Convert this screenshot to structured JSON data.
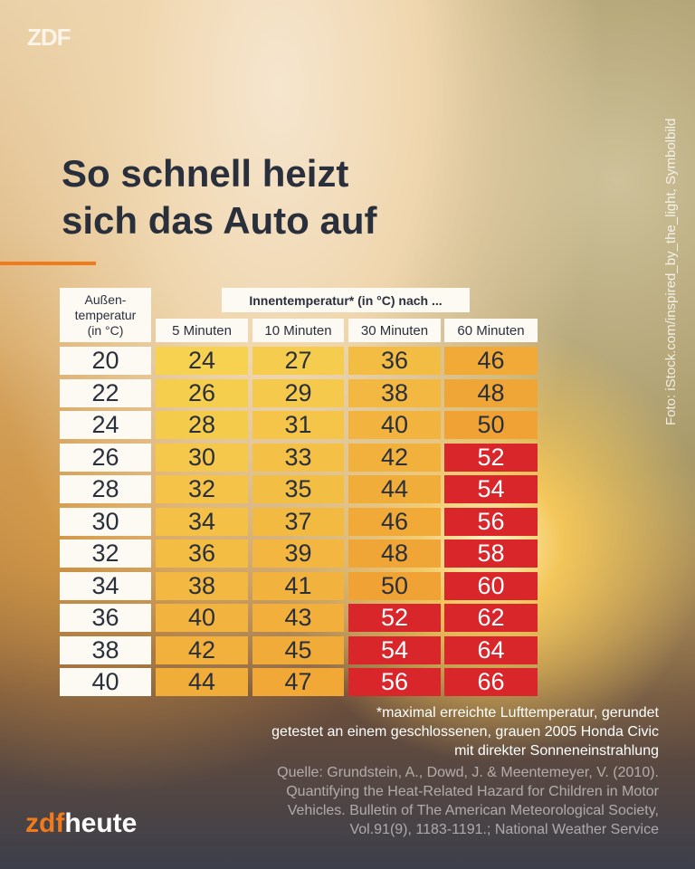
{
  "brand": {
    "top_logo": "ZDF",
    "bottom_logo_a": "zdf",
    "bottom_logo_b": "heute"
  },
  "photo_credit": "Foto: iStock.com/inspired_by_the_light, Symbolbild",
  "title_line1": "So schnell heizt",
  "title_line2": "sich das Auto auf",
  "chart_data": {
    "type": "table",
    "title": "So schnell heizt sich das Auto auf",
    "row_header": "Außen-temperatur (in °C)",
    "column_group_header": "Innentemperatur* (in °C) nach ...",
    "columns": [
      "5 Minuten",
      "10 Minuten",
      "30 Minuten",
      "60 Minuten"
    ],
    "rows": [
      {
        "outside": 20,
        "values": [
          24,
          27,
          36,
          46
        ]
      },
      {
        "outside": 22,
        "values": [
          26,
          29,
          38,
          48
        ]
      },
      {
        "outside": 24,
        "values": [
          28,
          31,
          40,
          50
        ]
      },
      {
        "outside": 26,
        "values": [
          30,
          33,
          42,
          52
        ]
      },
      {
        "outside": 28,
        "values": [
          32,
          35,
          44,
          54
        ]
      },
      {
        "outside": 30,
        "values": [
          34,
          37,
          46,
          56
        ]
      },
      {
        "outside": 32,
        "values": [
          36,
          39,
          48,
          58
        ]
      },
      {
        "outside": 34,
        "values": [
          38,
          41,
          50,
          60
        ]
      },
      {
        "outside": 36,
        "values": [
          40,
          43,
          52,
          62
        ]
      },
      {
        "outside": 38,
        "values": [
          42,
          45,
          54,
          64
        ]
      },
      {
        "outside": 40,
        "values": [
          44,
          47,
          56,
          66
        ]
      }
    ],
    "colors": {
      "low": "#f6d250",
      "mid": "#f0a234",
      "high": "#d9262b"
    },
    "red_threshold": 52
  },
  "row_header_lines": [
    "Außen-",
    "temperatur",
    "(in °C)"
  ],
  "footnotes": [
    "*maximal erreichte Lufttemperatur, gerundet",
    "getestet an einem geschlossenen, grauen 2005 Honda Civic",
    "mit direkter Sonneneinstrahlung"
  ],
  "source": [
    "Quelle: Grundstein, A., Dowd, J. & Meentemeyer, V. (2010).",
    "Quantifying the Heat-Related Hazard for Children in Motor",
    "Vehicles. Bulletin of The American Meteorological Society,",
    "Vol.91(9), 1183-1191.; National Weather Service"
  ]
}
